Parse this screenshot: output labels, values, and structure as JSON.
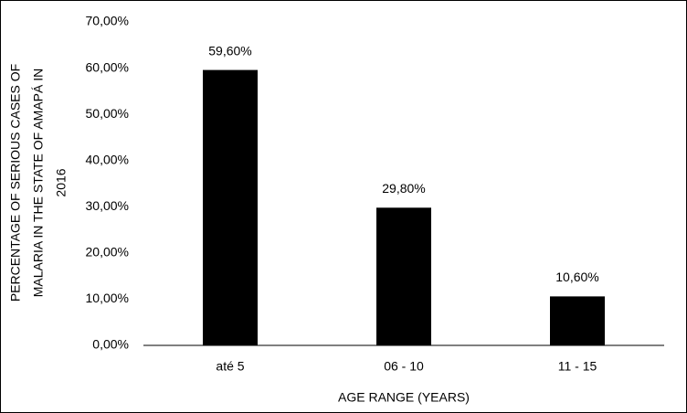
{
  "chart_data": {
    "type": "bar",
    "y_label": [
      "PERCENTAGE OF SERIOUS CASES OF",
      "MALARIA IN THE STATE OF AMAPÁ IN",
      "2016"
    ],
    "x_label": "AGE RANGE (YEARS)",
    "categories": [
      "até 5",
      "06 - 10",
      "11 - 15"
    ],
    "values": [
      59.6,
      29.8,
      10.6
    ],
    "value_labels": [
      "59,60%",
      "29,80%",
      "10,60%"
    ],
    "color": "#000000",
    "ylim": [
      0,
      70
    ],
    "yticks": [
      {
        "value": 0,
        "label": "0,00%"
      },
      {
        "value": 10,
        "label": "10,00%"
      },
      {
        "value": 20,
        "label": "20,00%"
      },
      {
        "value": 30,
        "label": "30,00%"
      },
      {
        "value": 40,
        "label": "40,00%"
      },
      {
        "value": 50,
        "label": "50,00%"
      },
      {
        "value": 60,
        "label": "60,00%"
      },
      {
        "value": 70,
        "label": "70,00%"
      }
    ],
    "grid": false
  }
}
